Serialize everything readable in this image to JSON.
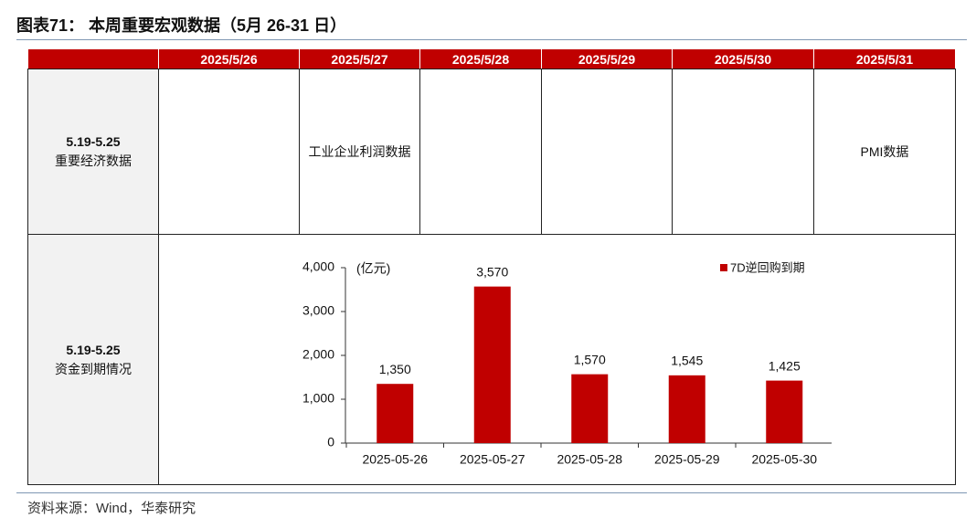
{
  "header": {
    "title": "图表71： 本周重要宏观数据（5月 26-31 日）"
  },
  "table": {
    "columns": [
      "2025/5/26",
      "2025/5/27",
      "2025/5/28",
      "2025/5/29",
      "2025/5/30",
      "2025/5/31"
    ],
    "rows": [
      {
        "label": [
          "5.19-5.25",
          "重要经济数据"
        ],
        "cells": [
          {
            "col": 1,
            "text": "工业企业利润数据"
          },
          {
            "col": 5,
            "text": "PMI数据"
          }
        ]
      },
      {
        "label": [
          "5.19-5.25",
          "资金到期情况"
        ]
      }
    ]
  },
  "chart_data": {
    "type": "bar",
    "unit": "(亿元)",
    "categories": [
      "2025-05-26",
      "2025-05-27",
      "2025-05-28",
      "2025-05-29",
      "2025-05-30"
    ],
    "series": [
      {
        "name": "7D逆回购到期",
        "color": "#c00000",
        "values": [
          1350,
          3570,
          1570,
          1545,
          1425
        ],
        "value_labels": [
          "1,350",
          "3,570",
          "1,570",
          "1,545",
          "1,425"
        ]
      }
    ],
    "ylim": [
      0,
      4000
    ],
    "yticks": [
      0,
      {
        "value": 1000,
        "label": "1,000"
      },
      {
        "value": 2000,
        "label": "2,000"
      },
      {
        "value": 3000,
        "label": "3,000"
      },
      {
        "value": 4000,
        "label": "4,000"
      }
    ],
    "legend": "top-right"
  },
  "source": "资料来源：Wind，华泰研究"
}
